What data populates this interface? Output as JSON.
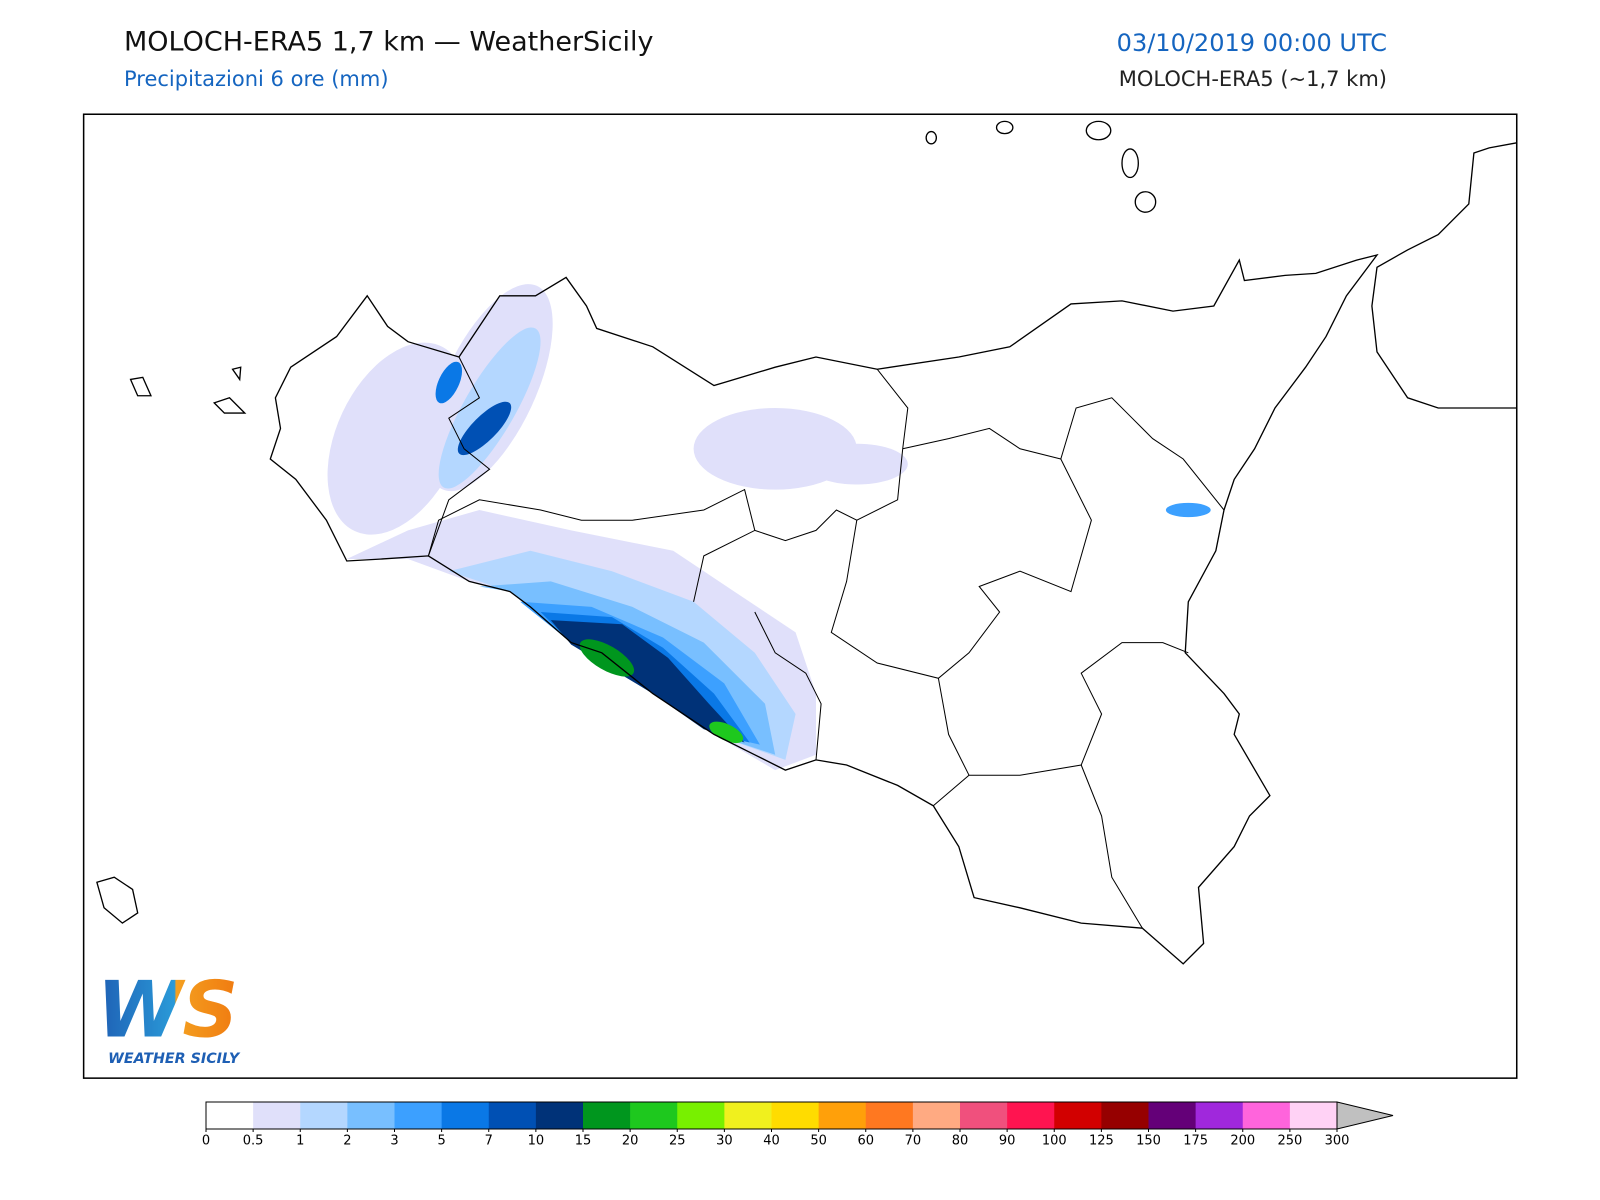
{
  "header": {
    "title": "MOLOCH-ERA5 1,7 km — WeatherSicily",
    "subtitle": "Precipitazioni 6 ore (mm)",
    "datetime": "03/10/2019 00:00 UTC",
    "model": "MOLOCH-ERA5 (~1,7 km)"
  },
  "logo": {
    "initials": "WS",
    "text": "WEATHER SICILY"
  },
  "colorbar": {
    "ticks": [
      0,
      0.5,
      1,
      2,
      3,
      5,
      7,
      10,
      15,
      20,
      25,
      30,
      40,
      50,
      60,
      70,
      80,
      90,
      100,
      125,
      150,
      175,
      200,
      250,
      300
    ],
    "colors": [
      "#ffffff",
      "#e0e0fa",
      "#b4d7ff",
      "#78bfff",
      "#3ca0ff",
      "#0a78e6",
      "#0050b4",
      "#003278",
      "#00961e",
      "#1ec81e",
      "#78f000",
      "#f0f01e",
      "#ffdc00",
      "#ffa00a",
      "#ff7820",
      "#ffaa82",
      "#f0507d",
      "#ff1450",
      "#d20000",
      "#960000",
      "#640078",
      "#a028dc",
      "#ff64dc",
      "#ffd2f5"
    ],
    "extend_color": "#c0c0c0"
  }
}
